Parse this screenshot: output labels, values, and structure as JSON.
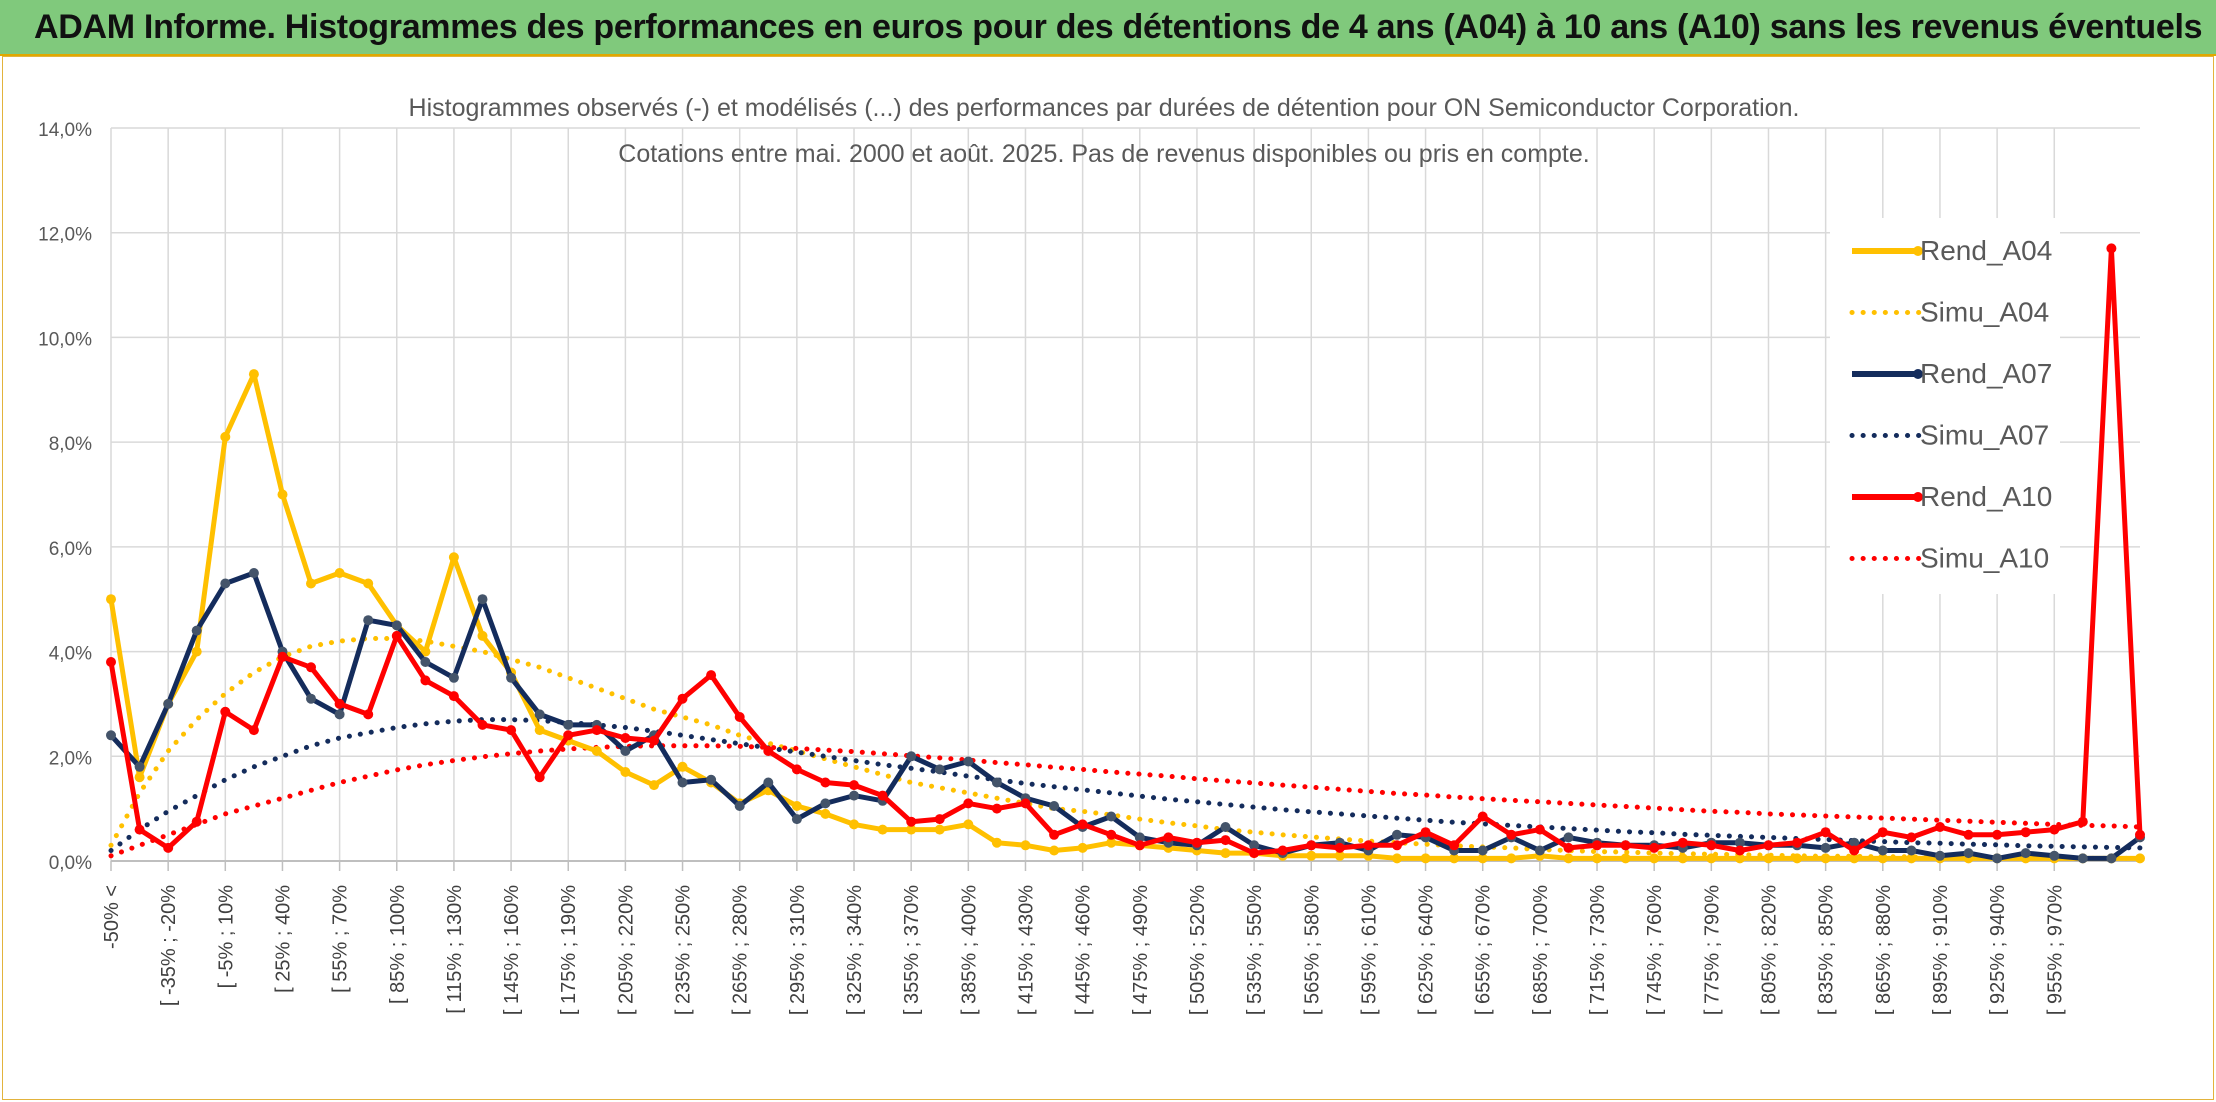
{
  "header": {
    "title": "ADAM Informe. Histogrammes des performances en euros pour des détentions de 4 ans (A04) à 10 ans (A10) sans les revenus éventuels"
  },
  "colors": {
    "banner": "#80c97c",
    "a04": "#ffc000",
    "a07": "#142c5c",
    "a10": "#ff0000",
    "grid": "#d9d9d9"
  },
  "chart_data": {
    "type": "line",
    "title": "Histogrammes observés (-) et modélisés (...) des performances par durées de détention pour ON Semiconductor Corporation.",
    "subtitle": "Cotations entre mai. 2000 et août. 2025. Pas de revenus disponibles ou pris en compte.",
    "y_ticks": [
      "0,0%",
      "2,0%",
      "4,0%",
      "6,0%",
      "8,0%",
      "10,0%",
      "12,0%",
      "14,0%"
    ],
    "ylim": [
      0,
      14
    ],
    "grid": true,
    "legend_position": "right",
    "x_tick_labels": [
      "-50% <",
      "[ -35% ; -20%",
      "[ -5% ; 10%",
      "[ 25% ; 40%",
      "[ 55% ; 70%",
      "[ 85% ; 100%",
      "[ 115% ; 130%",
      "[ 145% ; 160%",
      "[ 175% ; 190%",
      "[ 205% ; 220%",
      "[ 235% ; 250%",
      "[ 265% ; 280%",
      "[ 295% ; 310%",
      "[ 325% ; 340%",
      "[ 355% ; 370%",
      "[ 385% ; 400%",
      "[ 415% ; 430%",
      "[ 445% ; 460%",
      "[ 475% ; 490%",
      "[ 505% ; 520%",
      "[ 535% ; 550%",
      "[ 565% ; 580%",
      "[ 595% ; 610%",
      "[ 625% ; 640%",
      "[ 655% ; 670%",
      "[ 685% ; 700%",
      "[ 715% ; 730%",
      "[ 745% ; 760%",
      "[ 775% ; 790%",
      "[ 805% ; 820%",
      "[ 835% ; 850%",
      "[ 865% ; 880%",
      "[ 895% ; 910%",
      "[ 925% ; 940%",
      "[ 955% ; 970%"
    ],
    "series": [
      {
        "name": "Rend_A04",
        "style": "solid",
        "color": "#ffc000",
        "values": [
          5.0,
          1.6,
          3.0,
          4.0,
          8.1,
          9.3,
          7.0,
          5.3,
          5.5,
          5.3,
          4.5,
          4.0,
          5.8,
          4.3,
          3.6,
          2.5,
          2.3,
          2.1,
          1.7,
          1.45,
          1.8,
          1.5,
          1.1,
          1.35,
          1.05,
          0.9,
          0.7,
          0.6,
          0.6,
          0.6,
          0.7,
          0.35,
          0.3,
          0.2,
          0.25,
          0.35,
          0.3,
          0.25,
          0.2,
          0.15,
          0.15,
          0.1,
          0.1,
          0.1,
          0.1,
          0.05,
          0.05,
          0.05,
          0.05,
          0.05,
          0.1,
          0.05,
          0.05,
          0.05,
          0.05,
          0.05,
          0.05,
          0.05,
          0.05,
          0.05,
          0.05,
          0.05,
          0.05,
          0.05,
          0.05,
          0.05,
          0.05,
          0.05,
          0.05,
          0.05,
          0.05,
          0.05
        ]
      },
      {
        "name": "Simu_A04",
        "style": "dotted",
        "color": "#ffc000",
        "values": [
          0.3,
          1.3,
          2.1,
          2.7,
          3.2,
          3.6,
          3.9,
          4.1,
          4.2,
          4.25,
          4.25,
          4.2,
          4.1,
          4.0,
          3.85,
          3.7,
          3.5,
          3.3,
          3.1,
          2.9,
          2.75,
          2.6,
          2.4,
          2.25,
          2.1,
          1.95,
          1.8,
          1.65,
          1.5,
          1.4,
          1.3,
          1.2,
          1.1,
          1.0,
          0.95,
          0.88,
          0.8,
          0.73,
          0.67,
          0.6,
          0.55,
          0.5,
          0.46,
          0.42,
          0.38,
          0.35,
          0.32,
          0.29,
          0.27,
          0.25,
          0.22,
          0.2,
          0.18,
          0.17,
          0.15,
          0.14,
          0.13,
          0.12,
          0.11,
          0.1,
          0.09,
          0.09,
          0.08,
          0.08,
          0.07,
          0.07,
          0.06,
          0.06,
          0.06,
          0.05,
          0.05,
          0.05
        ]
      },
      {
        "name": "Rend_A07",
        "style": "solid",
        "color": "#142c5c",
        "values": [
          2.4,
          1.8,
          3.0,
          4.4,
          5.3,
          5.5,
          4.0,
          3.1,
          2.8,
          4.6,
          4.5,
          3.8,
          3.5,
          5.0,
          3.5,
          2.8,
          2.6,
          2.6,
          2.1,
          2.4,
          1.5,
          1.55,
          1.05,
          1.5,
          0.8,
          1.1,
          1.25,
          1.15,
          2.0,
          1.75,
          1.9,
          1.5,
          1.2,
          1.05,
          0.65,
          0.85,
          0.45,
          0.35,
          0.3,
          0.65,
          0.3,
          0.15,
          0.3,
          0.35,
          0.2,
          0.5,
          0.45,
          0.2,
          0.2,
          0.45,
          0.2,
          0.45,
          0.35,
          0.3,
          0.3,
          0.25,
          0.35,
          0.35,
          0.3,
          0.3,
          0.25,
          0.35,
          0.2,
          0.2,
          0.1,
          0.15,
          0.05,
          0.15,
          0.1,
          0.05,
          0.05,
          0.45
        ]
      },
      {
        "name": "Simu_A07",
        "style": "dotted",
        "color": "#142c5c",
        "values": [
          0.2,
          0.6,
          0.95,
          1.25,
          1.55,
          1.8,
          2.0,
          2.2,
          2.35,
          2.45,
          2.55,
          2.62,
          2.67,
          2.7,
          2.7,
          2.68,
          2.65,
          2.6,
          2.55,
          2.48,
          2.4,
          2.32,
          2.24,
          2.16,
          2.08,
          2.0,
          1.92,
          1.84,
          1.77,
          1.7,
          1.62,
          1.55,
          1.48,
          1.42,
          1.36,
          1.3,
          1.24,
          1.18,
          1.13,
          1.08,
          1.03,
          0.98,
          0.94,
          0.9,
          0.86,
          0.82,
          0.78,
          0.74,
          0.71,
          0.68,
          0.65,
          0.62,
          0.59,
          0.56,
          0.54,
          0.51,
          0.49,
          0.47,
          0.45,
          0.43,
          0.41,
          0.39,
          0.37,
          0.35,
          0.34,
          0.32,
          0.31,
          0.29,
          0.28,
          0.27,
          0.26,
          0.25
        ]
      },
      {
        "name": "Rend_A10",
        "style": "solid",
        "color": "#ff0000",
        "values": [
          3.8,
          0.6,
          0.25,
          0.75,
          2.85,
          2.5,
          3.9,
          3.7,
          3.0,
          2.8,
          4.3,
          3.45,
          3.15,
          2.6,
          2.5,
          1.6,
          2.4,
          2.5,
          2.35,
          2.3,
          3.1,
          3.55,
          2.75,
          2.1,
          1.75,
          1.5,
          1.45,
          1.25,
          0.75,
          0.8,
          1.1,
          1.0,
          1.1,
          0.5,
          0.7,
          0.5,
          0.3,
          0.45,
          0.35,
          0.4,
          0.15,
          0.2,
          0.3,
          0.25,
          0.3,
          0.3,
          0.55,
          0.3,
          0.85,
          0.5,
          0.6,
          0.25,
          0.3,
          0.3,
          0.25,
          0.35,
          0.3,
          0.2,
          0.3,
          0.35,
          0.55,
          0.2,
          0.55,
          0.45,
          0.65,
          0.5,
          0.5,
          0.55,
          0.6,
          0.75,
          11.7,
          0.5
        ]
      },
      {
        "name": "Simu_A10",
        "style": "dotted",
        "color": "#ff0000",
        "values": [
          0.1,
          0.3,
          0.5,
          0.7,
          0.9,
          1.05,
          1.2,
          1.35,
          1.5,
          1.62,
          1.74,
          1.84,
          1.92,
          1.99,
          2.05,
          2.1,
          2.14,
          2.17,
          2.19,
          2.2,
          2.2,
          2.2,
          2.19,
          2.17,
          2.15,
          2.12,
          2.09,
          2.05,
          2.01,
          1.97,
          1.93,
          1.88,
          1.84,
          1.79,
          1.75,
          1.7,
          1.66,
          1.62,
          1.57,
          1.53,
          1.49,
          1.45,
          1.41,
          1.37,
          1.33,
          1.29,
          1.26,
          1.22,
          1.19,
          1.16,
          1.13,
          1.1,
          1.07,
          1.04,
          1.01,
          0.98,
          0.95,
          0.93,
          0.9,
          0.88,
          0.86,
          0.84,
          0.82,
          0.8,
          0.78,
          0.76,
          0.74,
          0.72,
          0.7,
          0.68,
          0.67,
          0.65
        ]
      }
    ]
  }
}
